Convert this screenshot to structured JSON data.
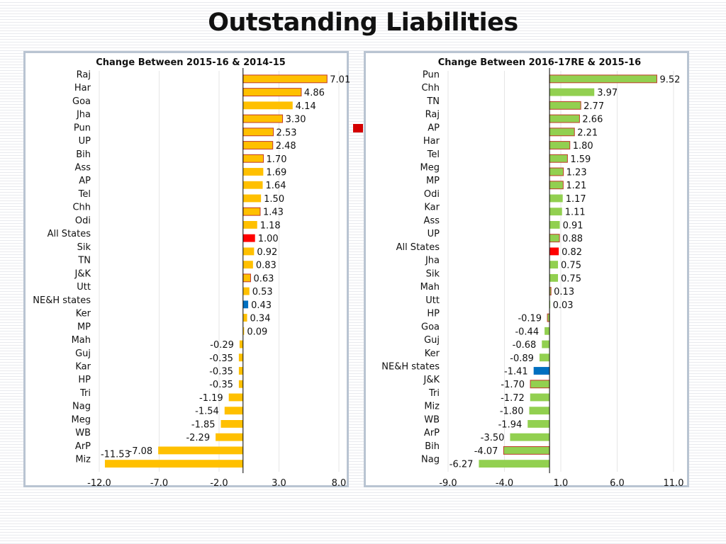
{
  "page": {
    "title": "Outstanding Liabilities"
  },
  "colors": {
    "left_bar": "#ffc000",
    "left_bar_outline": "#c0392b",
    "right_bar": "#92d050",
    "right_bar_outline": "#c0392b",
    "highlight_all_states": "#ff0000",
    "highlight_neh": "#0070c0",
    "axis": "#000000",
    "gridline": "#e6e6e6"
  },
  "chart_data": [
    {
      "type": "bar",
      "orientation": "horizontal",
      "title": "Change Between 2015-16 & 2014-15",
      "xlim": [
        -12,
        8
      ],
      "xticks": [
        -12,
        -7,
        -2,
        3,
        8
      ],
      "xtick_labels": [
        "-12.0",
        "-7.0",
        "-2.0",
        "3.0",
        "8.0"
      ],
      "grid": true,
      "categories": [
        "Raj",
        "Har",
        "Goa",
        "Jha",
        "Pun",
        "UP",
        "Bih",
        "Ass",
        "AP",
        "Tel",
        "Chh",
        "Odi",
        "All States",
        "Sik",
        "TN",
        "J&K",
        "Utt",
        "NE&H states",
        "Ker",
        "MP",
        "Mah",
        "Guj",
        "Kar",
        "HP",
        "Tri",
        "Nag",
        "Meg",
        "WB",
        "ArP",
        "Miz"
      ],
      "values": [
        7.01,
        4.86,
        4.14,
        3.3,
        2.53,
        2.48,
        1.7,
        1.69,
        1.64,
        1.5,
        1.43,
        1.18,
        1.0,
        0.92,
        0.83,
        0.63,
        0.53,
        0.43,
        0.34,
        0.09,
        -0.29,
        -0.35,
        -0.35,
        -0.35,
        -1.19,
        -1.54,
        -1.85,
        -2.29,
        -7.08,
        -11.53
      ],
      "value_labels": [
        "7.01",
        "4.86",
        "4.14",
        "3.30",
        "2.53",
        "2.48",
        "1.70",
        "1.69",
        "1.64",
        "1.50",
        "1.43",
        "1.18",
        "1.00",
        "0.92",
        "0.83",
        "0.63",
        "0.53",
        "0.43",
        "0.34",
        "0.09",
        "-0.29",
        "-0.35",
        "-0.35",
        "-0.35",
        "-1.19",
        "-1.54",
        "-1.85",
        "-2.29",
        "-7.08",
        "-11.53"
      ],
      "outlined": [
        true,
        true,
        false,
        true,
        true,
        true,
        true,
        false,
        false,
        false,
        true,
        false,
        false,
        false,
        false,
        true,
        false,
        false,
        false,
        false,
        false,
        false,
        false,
        false,
        false,
        false,
        false,
        false,
        false,
        false
      ],
      "highlights": {
        "All States": "#ff0000",
        "NE&H states": "#0070c0"
      }
    },
    {
      "type": "bar",
      "orientation": "horizontal",
      "title": "Change Between 2016-17RE & 2015-16",
      "xlim": [
        -9,
        11
      ],
      "xticks": [
        -9,
        -4,
        1,
        6,
        11
      ],
      "xtick_labels": [
        "-9.0",
        "-4.0",
        "1.0",
        "6.0",
        "11.0"
      ],
      "grid": true,
      "categories": [
        "Pun",
        "Chh",
        "TN",
        "Raj",
        "AP",
        "Har",
        "Tel",
        "Meg",
        "MP",
        "Odi",
        "Kar",
        "Ass",
        "UP",
        "All States",
        "Jha",
        "Sik",
        "Mah",
        "Utt",
        "HP",
        "Goa",
        "Guj",
        "Ker",
        "NE&H states",
        "J&K",
        "Tri",
        "Miz",
        "WB",
        "ArP",
        "Bih",
        "Nag"
      ],
      "values": [
        9.52,
        3.97,
        2.77,
        2.66,
        2.21,
        1.8,
        1.59,
        1.23,
        1.21,
        1.17,
        1.11,
        0.91,
        0.88,
        0.82,
        0.75,
        0.75,
        0.13,
        0.03,
        -0.19,
        -0.44,
        -0.68,
        -0.89,
        -1.41,
        -1.7,
        -1.72,
        -1.8,
        -1.94,
        -3.5,
        -4.07,
        -6.27
      ],
      "value_labels": [
        "9.52",
        "3.97",
        "2.77",
        "2.66",
        "2.21",
        "1.80",
        "1.59",
        "1.23",
        "1.21",
        "1.17",
        "1.11",
        "0.91",
        "0.88",
        "0.82",
        "0.75",
        "0.75",
        "0.13",
        "0.03",
        "-0.19",
        "-0.44",
        "-0.68",
        "-0.89",
        "-1.41",
        "-1.70",
        "-1.72",
        "-1.80",
        "-1.94",
        "-3.50",
        "-4.07",
        "-6.27"
      ],
      "outlined": [
        true,
        false,
        true,
        true,
        true,
        true,
        true,
        true,
        true,
        false,
        false,
        false,
        true,
        false,
        false,
        false,
        true,
        false,
        true,
        false,
        false,
        false,
        false,
        true,
        false,
        false,
        false,
        false,
        true,
        false
      ],
      "highlights": {
        "All States": "#ff0000",
        "NE&H states": "#0070c0"
      }
    }
  ]
}
